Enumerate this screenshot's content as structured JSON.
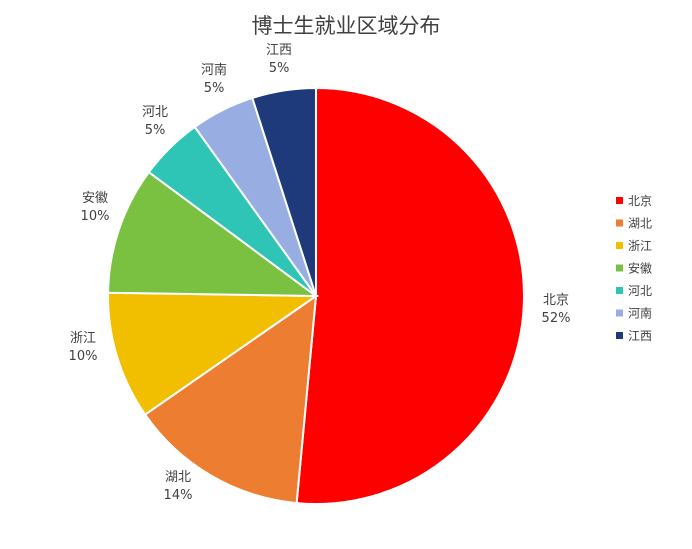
{
  "chart_data": {
    "type": "pie",
    "title": "博士生就业区域分布",
    "categories": [
      "北京",
      "湖北",
      "浙江",
      "安徽",
      "河北",
      "河南",
      "江西"
    ],
    "values": [
      52,
      14,
      10,
      10,
      5,
      5,
      5
    ],
    "labels": [
      "52%",
      "14%",
      "10%",
      "10%",
      "5%",
      "5%",
      "5%"
    ],
    "colors": [
      "#FF0000",
      "#ED7D31",
      "#F2BE00",
      "#7AC142",
      "#2EC4B6",
      "#98AEE2",
      "#1F3A7A"
    ],
    "legend": "right",
    "start": "top",
    "direction": "clockwise"
  }
}
